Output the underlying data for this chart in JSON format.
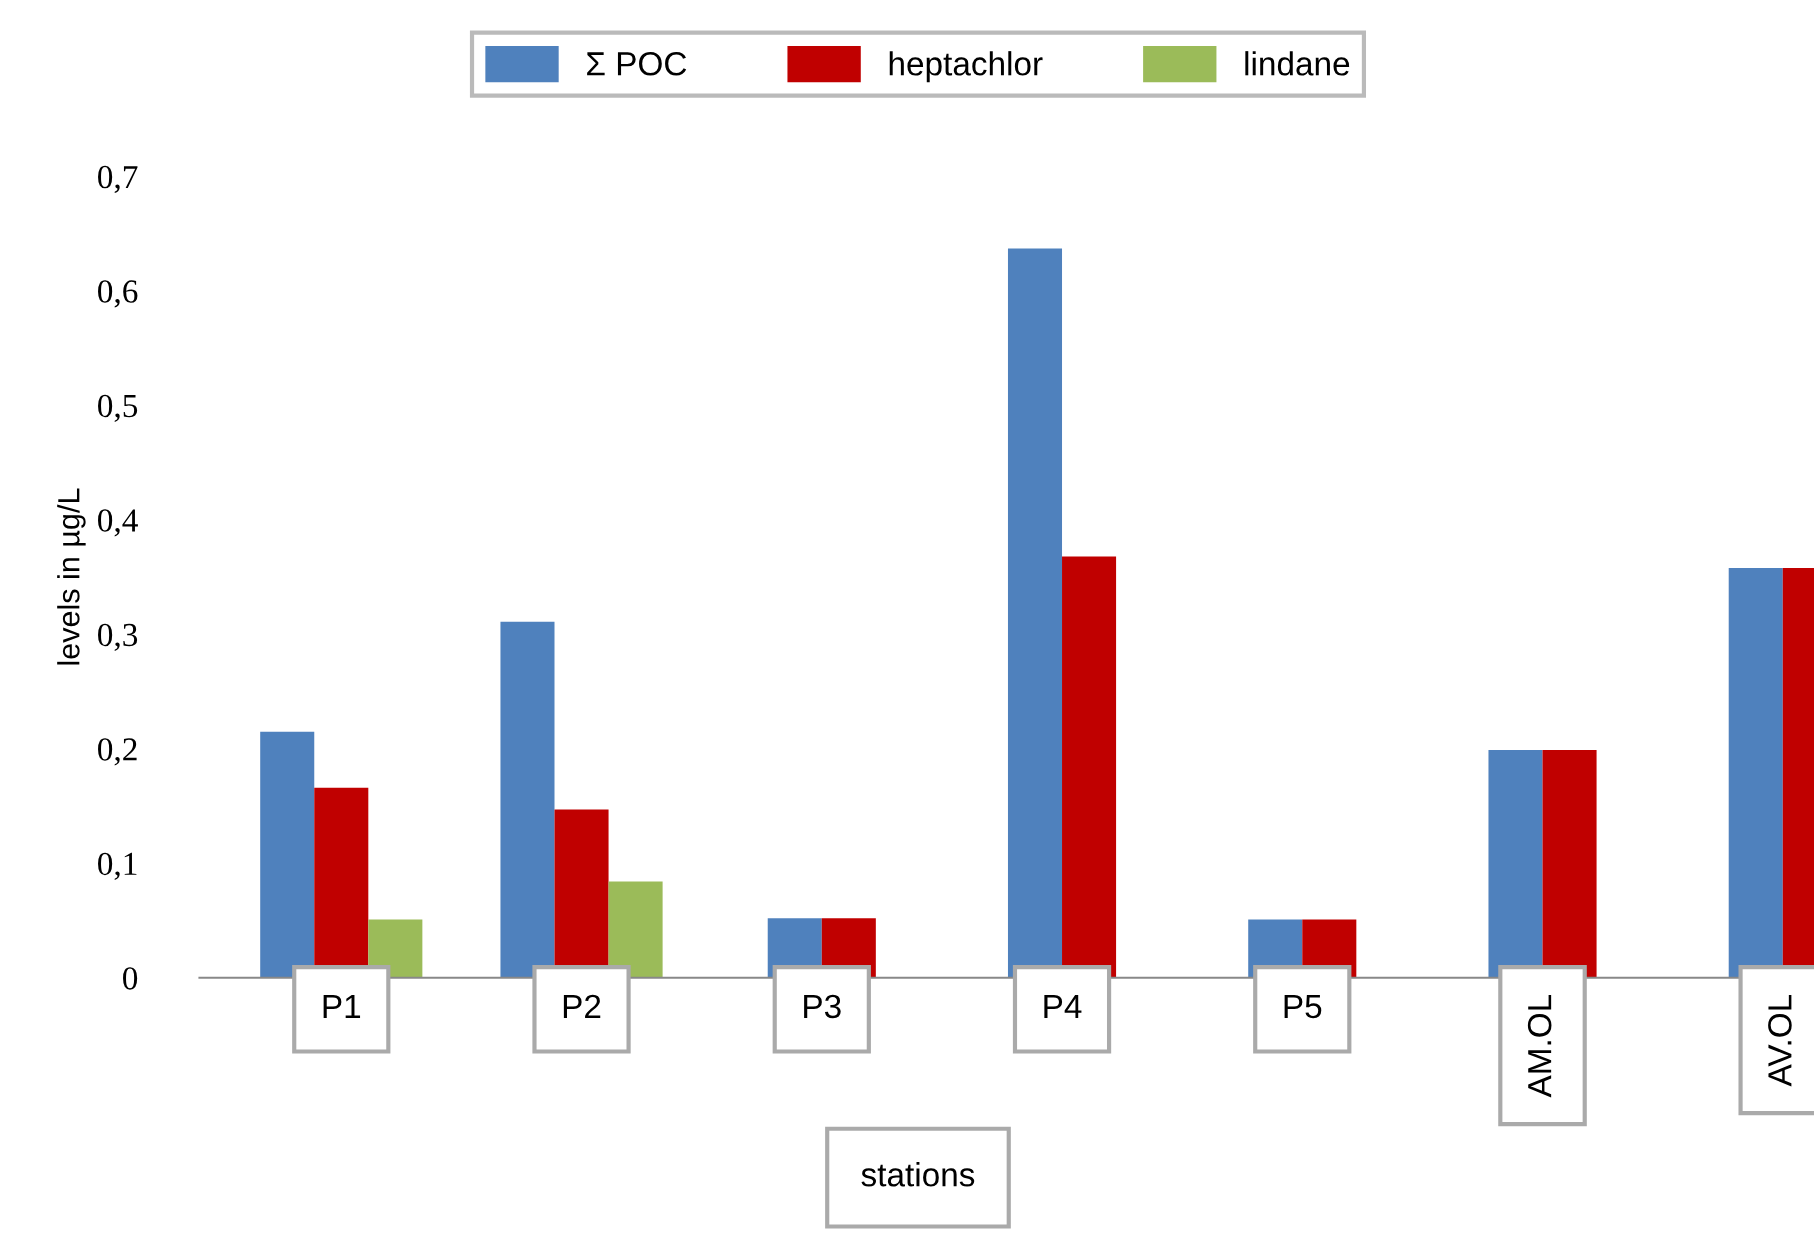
{
  "chart_data": {
    "type": "bar",
    "ylabel": "levels in µg/L",
    "xlabel": "stations",
    "categories": [
      "P1",
      "P2",
      "P3",
      "P4",
      "P5",
      "AM.OL",
      "AV.OL"
    ],
    "series": [
      {
        "name": "Σ POC",
        "color": "#4f81bd",
        "values": [
          0.215,
          0.311,
          0.052,
          0.637,
          0.051,
          0.199,
          0.358
        ]
      },
      {
        "name": "heptachlor",
        "color": "#c00000",
        "values": [
          0.166,
          0.147,
          0.052,
          0.368,
          0.051,
          0.199,
          0.358
        ]
      },
      {
        "name": "lindane",
        "color": "#9bbb59",
        "values": [
          0.051,
          0.084,
          null,
          null,
          null,
          null,
          null
        ]
      }
    ],
    "ylim": [
      0,
      0.7
    ],
    "yticks": [
      0,
      {
        "value": 0.1,
        "label": "0,1"
      },
      {
        "value": 0.2,
        "label": "0,2"
      },
      {
        "value": 0.3,
        "label": "0,3"
      },
      {
        "value": 0.4,
        "label": "0,4"
      },
      {
        "value": 0.5,
        "label": "0,5"
      },
      {
        "value": 0.6,
        "label": "0,6"
      },
      {
        "value": 0.7,
        "label": "0,7"
      }
    ],
    "grid": false,
    "legend": "top"
  }
}
